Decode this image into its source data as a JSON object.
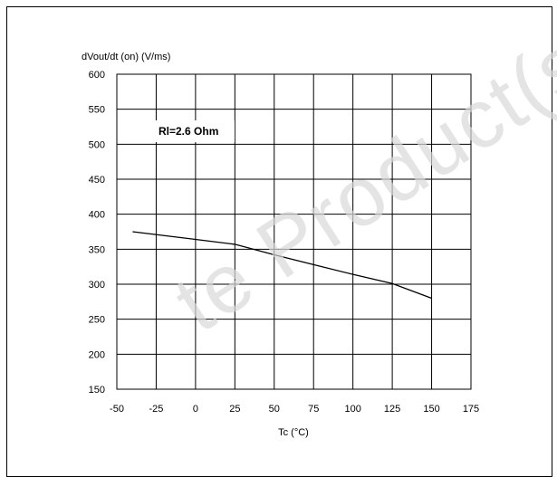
{
  "chart_data": {
    "type": "line",
    "ylabel": "dVout/dt (on) (V/ms)",
    "xlabel": "Tc (°C)",
    "annotation": "Rl=2.6 Ohm",
    "xlim": [
      -50,
      175
    ],
    "ylim": [
      150,
      600
    ],
    "x_ticks": [
      -50,
      -25,
      0,
      25,
      50,
      75,
      100,
      125,
      150,
      175
    ],
    "y_ticks": [
      150,
      200,
      250,
      300,
      350,
      400,
      450,
      500,
      550,
      600
    ],
    "grid": true,
    "series": [
      {
        "x": [
          -40,
          0,
          25,
          50,
          75,
          100,
          125,
          150
        ],
        "y": [
          375,
          364,
          357,
          342,
          328,
          314,
          301,
          280
        ]
      }
    ]
  },
  "watermark": "te Product(s) - O",
  "colors": {
    "line": "#000000",
    "grid": "#000000",
    "watermark": "#d9d9d9"
  }
}
